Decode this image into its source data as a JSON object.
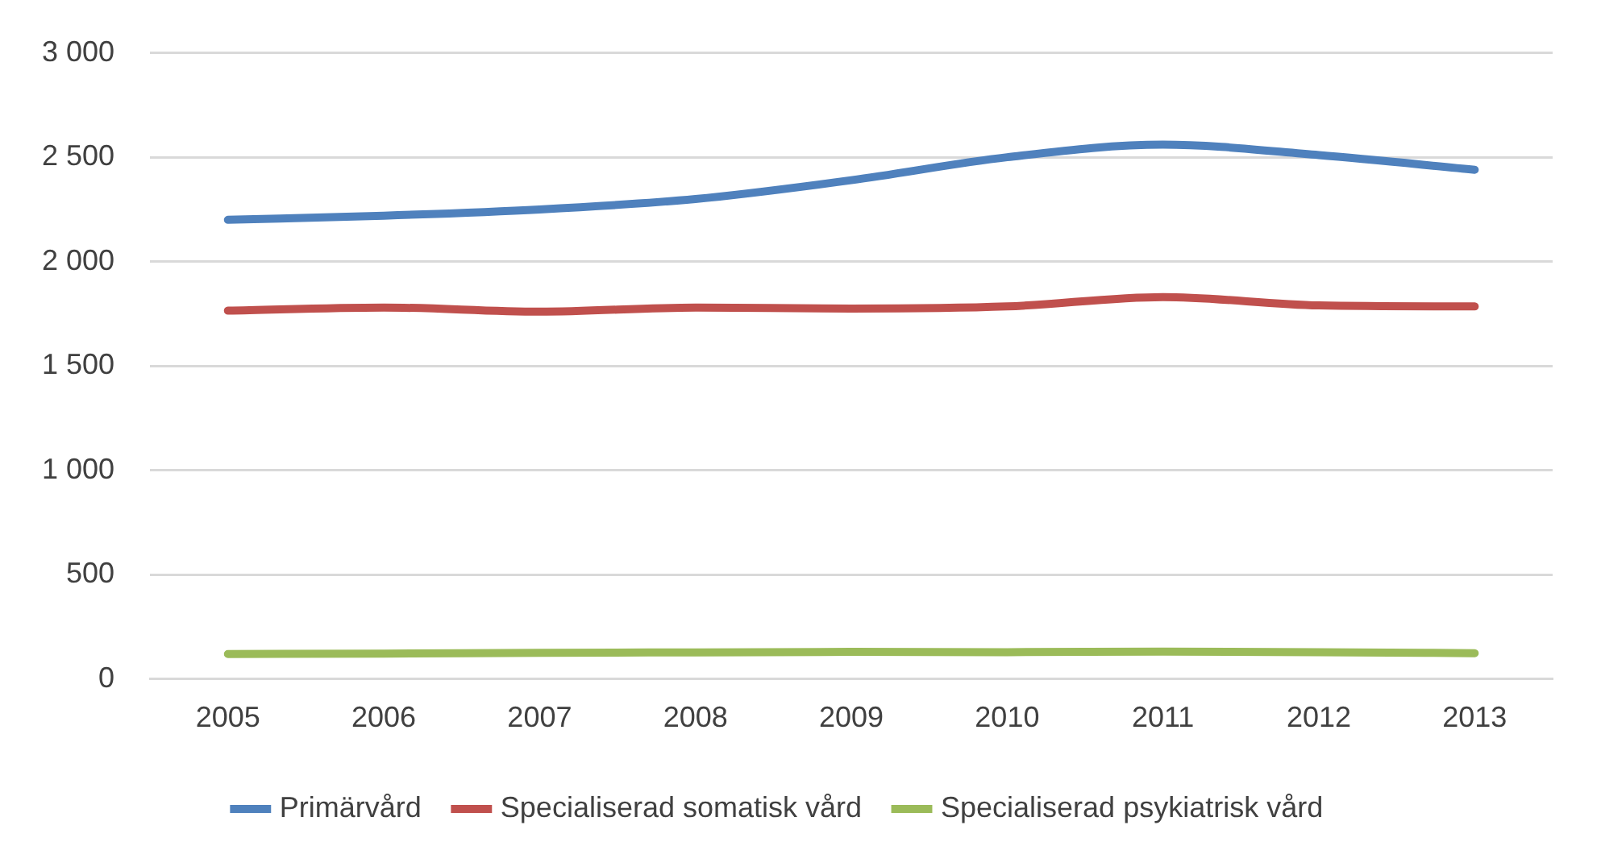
{
  "chart_data": {
    "type": "line",
    "categories": [
      "2005",
      "2006",
      "2007",
      "2008",
      "2009",
      "2010",
      "2011",
      "2012",
      "2013"
    ],
    "series": [
      {
        "name": "Primärvård",
        "color": "#4f81bd",
        "values": [
          2200,
          2220,
          2250,
          2300,
          2390,
          2500,
          2560,
          2510,
          2440
        ]
      },
      {
        "name": "Specialiserad somatisk vård",
        "color": "#c0504d",
        "values": [
          1765,
          1780,
          1760,
          1780,
          1775,
          1785,
          1830,
          1790,
          1785
        ]
      },
      {
        "name": "Specialiserad psykiatrisk vård",
        "color": "#9bbb59",
        "values": [
          120,
          122,
          126,
          128,
          130,
          129,
          131,
          129,
          124
        ]
      }
    ],
    "ylim": [
      0,
      3000
    ],
    "yticks": [
      0,
      500,
      {
        "value": 1000,
        "label": "1 000"
      },
      {
        "value": 1500,
        "label": "1 500"
      },
      {
        "value": 2000,
        "label": "2 000"
      },
      {
        "value": 2500,
        "label": "2 500"
      },
      {
        "value": 3000,
        "label": "3 000"
      }
    ],
    "grid": "y",
    "legend": "bottom",
    "marker": "none",
    "line_style": "solid"
  }
}
